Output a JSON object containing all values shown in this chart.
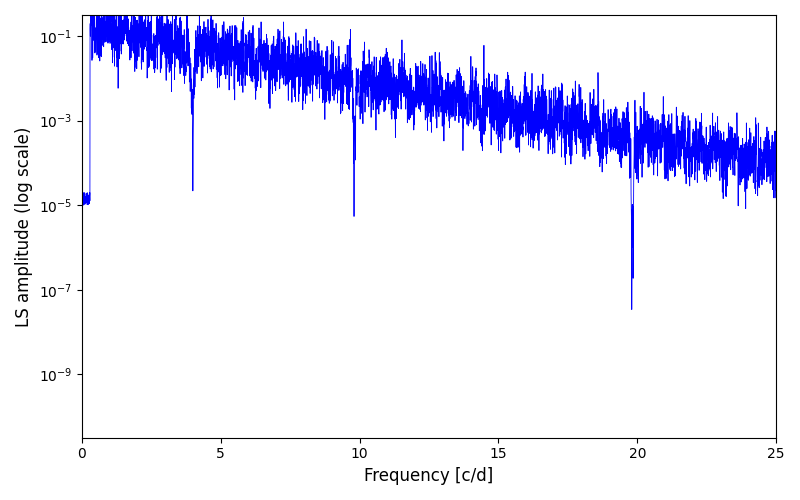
{
  "title": "",
  "xlabel": "Frequency [c/d]",
  "ylabel": "LS amplitude (log scale)",
  "line_color": "#0000FF",
  "line_width": 0.6,
  "xlim": [
    0,
    25
  ],
  "ylim_log": [
    -10.5,
    -0.5
  ],
  "yscale": "log",
  "figsize": [
    8.0,
    5.0
  ],
  "dpi": 100,
  "background_color": "#ffffff",
  "freq_min": 0.0,
  "freq_max": 25.0,
  "n_points": 5000,
  "seed": 42
}
